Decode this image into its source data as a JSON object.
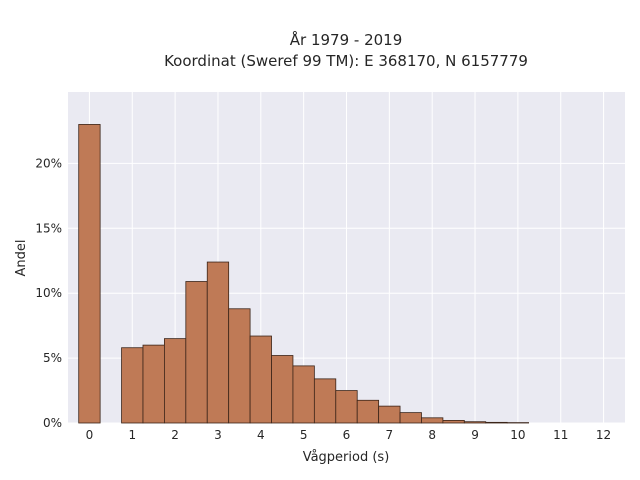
{
  "chart_data": {
    "type": "bar",
    "title": "År 1979 - 2019",
    "subtitle": "Koordinat (Sweref 99 TM): E 368170, N 6157779",
    "xlabel": "Vågperiod (s)",
    "ylabel": "Andel",
    "xlim": [
      -0.5,
      12.5
    ],
    "ylim": [
      0,
      25.5
    ],
    "x_ticks": [
      0,
      1,
      2,
      3,
      4,
      5,
      6,
      7,
      8,
      9,
      10,
      11,
      12
    ],
    "y_ticks": [
      0,
      5,
      10,
      15,
      20
    ],
    "y_tick_labels": [
      "0%",
      "5%",
      "10%",
      "15%",
      "20%"
    ],
    "bin_width": 0.5,
    "bars": [
      {
        "x": 0.0,
        "value": 23.0
      },
      {
        "x": 1.0,
        "value": 5.8
      },
      {
        "x": 1.5,
        "value": 6.0
      },
      {
        "x": 2.0,
        "value": 6.5
      },
      {
        "x": 2.5,
        "value": 10.9
      },
      {
        "x": 3.0,
        "value": 12.4
      },
      {
        "x": 3.5,
        "value": 8.8
      },
      {
        "x": 4.0,
        "value": 6.7
      },
      {
        "x": 4.5,
        "value": 5.2
      },
      {
        "x": 5.0,
        "value": 4.4
      },
      {
        "x": 5.5,
        "value": 3.4
      },
      {
        "x": 6.0,
        "value": 2.5
      },
      {
        "x": 6.5,
        "value": 1.75
      },
      {
        "x": 7.0,
        "value": 1.3
      },
      {
        "x": 7.5,
        "value": 0.8
      },
      {
        "x": 8.0,
        "value": 0.4
      },
      {
        "x": 8.5,
        "value": 0.2
      },
      {
        "x": 9.0,
        "value": 0.1
      },
      {
        "x": 9.5,
        "value": 0.05
      },
      {
        "x": 10.0,
        "value": 0.03
      }
    ],
    "grid": true,
    "colors": {
      "bar_fill": "#bf7a56",
      "bar_edge": "#3b2418",
      "plot_background": "#eaeaf2",
      "grid": "#ffffff"
    }
  }
}
